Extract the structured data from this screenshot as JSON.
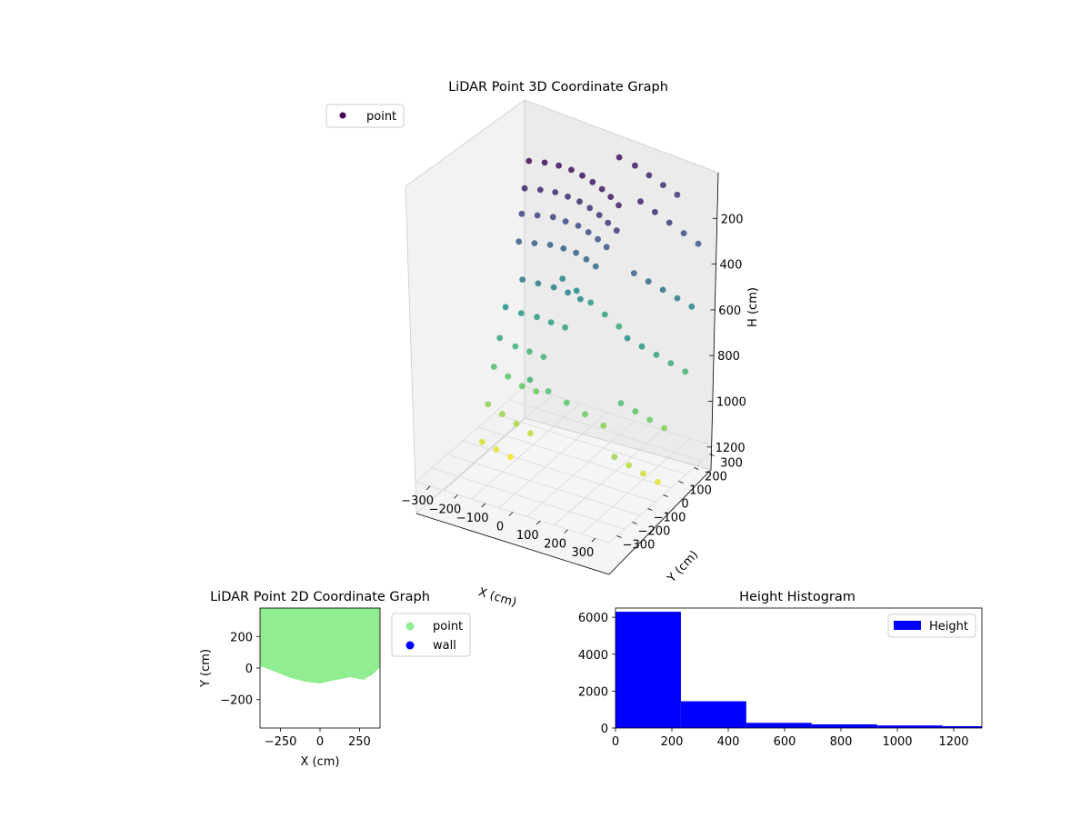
{
  "chart_data": [
    {
      "type": "scatter",
      "title": "LiDAR Point 3D Coordinate Graph",
      "xlabel": "X (cm)",
      "ylabel": "Y (cm)",
      "zlabel": "H (cm)",
      "xticks": [
        "−300",
        "−200",
        "−100",
        "0",
        "100",
        "200",
        "300"
      ],
      "yticks": [
        "−300",
        "−200",
        "−100",
        "0",
        "100",
        "200",
        "300"
      ],
      "zticks": [
        "200",
        "400",
        "600",
        "800",
        "1000",
        "1200"
      ],
      "xlim": [
        -350,
        350
      ],
      "ylim": [
        -350,
        350
      ],
      "zlim": [
        0,
        1300
      ],
      "z_inverted": true,
      "colormap": "viridis",
      "legend": {
        "placement": "upper-left",
        "entries": [
          {
            "label": "point",
            "color": "#440154"
          }
        ]
      },
      "series": [
        {
          "name": "point",
          "points": [
            [
              -160,
              40,
              30
            ],
            [
              -120,
              70,
              40
            ],
            [
              -80,
              90,
              50
            ],
            [
              -40,
              100,
              60
            ],
            [
              0,
              100,
              70
            ],
            [
              40,
              95,
              80
            ],
            [
              80,
              85,
              90
            ],
            [
              120,
              70,
              100
            ],
            [
              160,
              50,
              110
            ],
            [
              -170,
              30,
              150
            ],
            [
              -130,
              60,
              160
            ],
            [
              -90,
              85,
              170
            ],
            [
              -50,
              95,
              180
            ],
            [
              -10,
              100,
              190
            ],
            [
              30,
              95,
              200
            ],
            [
              70,
              85,
              210
            ],
            [
              110,
              70,
              220
            ],
            [
              150,
              55,
              230
            ],
            [
              -175,
              20,
              260
            ],
            [
              -135,
              50,
              270
            ],
            [
              -95,
              80,
              280
            ],
            [
              -55,
              90,
              290
            ],
            [
              -15,
              100,
              300
            ],
            [
              25,
              95,
              310
            ],
            [
              65,
              85,
              320
            ],
            [
              105,
              70,
              330
            ],
            [
              -180,
              10,
              380
            ],
            [
              -140,
              40,
              390
            ],
            [
              -100,
              70,
              400
            ],
            [
              -60,
              85,
              410
            ],
            [
              -20,
              95,
              420
            ],
            [
              20,
              90,
              430
            ],
            [
              60,
              80,
              440
            ],
            [
              -150,
              -20,
              520
            ],
            [
              -110,
              10,
              540
            ],
            [
              -70,
              40,
              560
            ],
            [
              -30,
              60,
              580
            ],
            [
              10,
              70,
              600
            ],
            [
              -200,
              -40,
              650
            ],
            [
              -160,
              -10,
              680
            ],
            [
              -120,
              20,
              700
            ],
            [
              -80,
              40,
              720
            ],
            [
              -40,
              60,
              740
            ],
            [
              -210,
              -60,
              780
            ],
            [
              -170,
              -30,
              820
            ],
            [
              -130,
              -10,
              840
            ],
            [
              -90,
              10,
              860
            ],
            [
              -220,
              -80,
              900
            ],
            [
              -180,
              -60,
              940
            ],
            [
              -140,
              -40,
              980
            ],
            [
              -100,
              -20,
              1000
            ],
            [
              -230,
              -100,
              1060
            ],
            [
              -190,
              -80,
              1100
            ],
            [
              -150,
              -60,
              1140
            ],
            [
              -110,
              -40,
              1180
            ],
            [
              -240,
              -120,
              1220
            ],
            [
              -200,
              -100,
              1250
            ],
            [
              -160,
              -80,
              1280
            ],
            [
              200,
              120,
              120
            ],
            [
              230,
              160,
              180
            ],
            [
              260,
              200,
              240
            ],
            [
              290,
              240,
              300
            ],
            [
              320,
              280,
              360
            ],
            [
              210,
              60,
              400
            ],
            [
              240,
              100,
              450
            ],
            [
              270,
              140,
              500
            ],
            [
              300,
              180,
              550
            ],
            [
              330,
              220,
              600
            ],
            [
              220,
              0,
              650
            ],
            [
              250,
              40,
              700
            ],
            [
              280,
              80,
              750
            ],
            [
              310,
              120,
              800
            ],
            [
              340,
              160,
              850
            ],
            [
              230,
              -60,
              900
            ],
            [
              260,
              -20,
              950
            ],
            [
              290,
              20,
              1000
            ],
            [
              320,
              60,
              1050
            ],
            [
              240,
              -120,
              1100
            ],
            [
              270,
              -80,
              1150
            ],
            [
              300,
              -40,
              1200
            ],
            [
              330,
              0,
              1250
            ],
            [
              50,
              250,
              60
            ],
            [
              90,
              280,
              100
            ],
            [
              130,
              300,
              140
            ],
            [
              170,
              320,
              180
            ],
            [
              210,
              340,
              220
            ],
            [
              -100,
              150,
              600
            ],
            [
              -60,
              170,
              650
            ],
            [
              -20,
              190,
              700
            ],
            [
              20,
              210,
              750
            ],
            [
              60,
              230,
              800
            ],
            [
              -50,
              -150,
              850
            ],
            [
              0,
              -120,
              900
            ],
            [
              50,
              -90,
              950
            ],
            [
              100,
              -60,
              1000
            ],
            [
              150,
              -30,
              1050
            ]
          ]
        }
      ]
    },
    {
      "type": "scatter",
      "title": "LiDAR Point 2D Coordinate Graph",
      "xlabel": "X (cm)",
      "ylabel": "Y (cm)",
      "xticks": [
        "−250",
        "0",
        "250"
      ],
      "yticks": [
        "200",
        "0",
        "−200"
      ],
      "xlim": [
        -380,
        380
      ],
      "ylim": [
        -380,
        380
      ],
      "legend": {
        "placement": "outside-right",
        "entries": [
          {
            "label": "point",
            "color": "#90ee90"
          },
          {
            "label": "wall",
            "color": "#0000ff"
          }
        ]
      },
      "series": [
        {
          "name": "point",
          "color": "#90ee90"
        },
        {
          "name": "wall",
          "color": "#0000ff"
        }
      ]
    },
    {
      "type": "bar",
      "title": "Height Histogram",
      "xlabel": "",
      "ylabel": "",
      "xticks": [
        "0",
        "200",
        "400",
        "600",
        "800",
        "1000",
        "1200"
      ],
      "yticks": [
        "0",
        "2000",
        "4000",
        "6000"
      ],
      "xlim": [
        0,
        1300
      ],
      "ylim": [
        0,
        6500
      ],
      "bin_width": 232,
      "bin_starts": [
        0,
        232,
        464,
        696,
        928,
        1160
      ],
      "values": [
        6300,
        1450,
        280,
        200,
        140,
        100
      ],
      "color": "#0000ff",
      "legend": {
        "placement": "upper-right",
        "entries": [
          {
            "label": "Height",
            "color": "#0000ff"
          }
        ]
      }
    }
  ]
}
